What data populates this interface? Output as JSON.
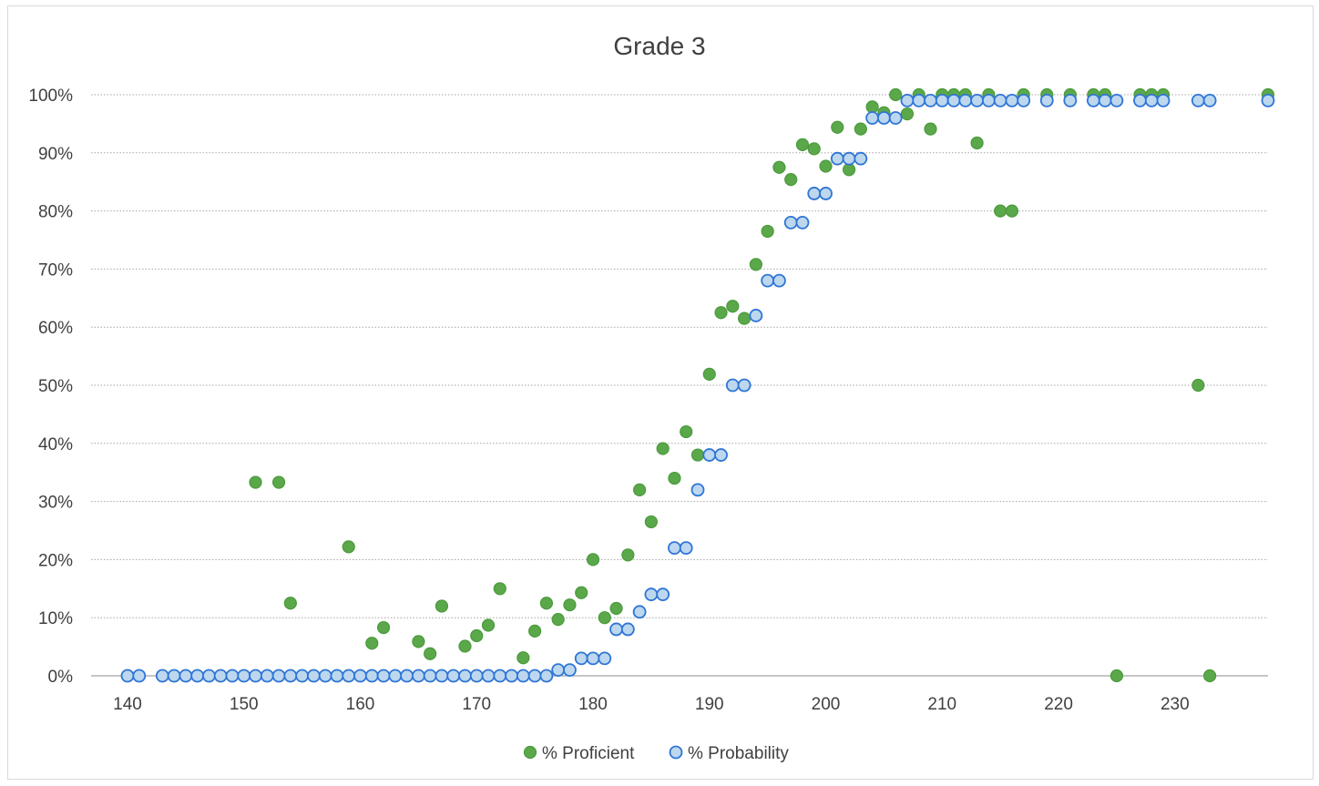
{
  "chart_data": {
    "type": "scatter",
    "title": "Grade 3",
    "xlabel": "",
    "ylabel": "",
    "xlim": [
      140,
      238
    ],
    "ylim": [
      0,
      100
    ],
    "x_ticks": [
      140,
      150,
      160,
      170,
      180,
      190,
      200,
      210,
      220,
      230
    ],
    "y_ticks": [
      0,
      10,
      20,
      30,
      40,
      50,
      60,
      70,
      80,
      90,
      100
    ],
    "y_tick_suffix": "%",
    "grid": "horizontal dotted",
    "legend_position": "bottom",
    "series": [
      {
        "name": "% Proficient",
        "color": "#5aa84a",
        "edge": "#4a9a3c",
        "marker": "filled-circle",
        "points": [
          [
            140,
            0
          ],
          [
            141,
            0
          ],
          [
            143,
            0
          ],
          [
            144,
            0
          ],
          [
            145,
            0
          ],
          [
            146,
            0
          ],
          [
            147,
            0
          ],
          [
            148,
            0
          ],
          [
            149,
            0
          ],
          [
            150,
            0
          ],
          [
            151,
            33.3
          ],
          [
            152,
            0
          ],
          [
            153,
            33.3
          ],
          [
            154,
            12.5
          ],
          [
            155,
            0
          ],
          [
            156,
            0
          ],
          [
            157,
            0
          ],
          [
            158,
            0
          ],
          [
            159,
            22.2
          ],
          [
            160,
            0
          ],
          [
            161,
            5.6
          ],
          [
            162,
            8.3
          ],
          [
            163,
            0
          ],
          [
            164,
            0
          ],
          [
            165,
            5.9
          ],
          [
            166,
            3.8
          ],
          [
            167,
            12.0
          ],
          [
            168,
            0
          ],
          [
            169,
            5.1
          ],
          [
            170,
            6.9
          ],
          [
            171,
            8.7
          ],
          [
            172,
            15.0
          ],
          [
            173,
            0
          ],
          [
            174,
            3.1
          ],
          [
            175,
            7.7
          ],
          [
            176,
            12.5
          ],
          [
            177,
            9.7
          ],
          [
            178,
            12.2
          ],
          [
            179,
            14.3
          ],
          [
            180,
            20.0
          ],
          [
            181,
            10.0
          ],
          [
            182,
            11.6
          ],
          [
            183,
            20.8
          ],
          [
            184,
            32.0
          ],
          [
            185,
            26.5
          ],
          [
            186,
            39.1
          ],
          [
            187,
            34.0
          ],
          [
            188,
            42.0
          ],
          [
            189,
            38.0
          ],
          [
            190,
            51.9
          ],
          [
            191,
            62.5
          ],
          [
            192,
            63.6
          ],
          [
            193,
            61.5
          ],
          [
            194,
            70.8
          ],
          [
            195,
            76.5
          ],
          [
            196,
            87.5
          ],
          [
            197,
            85.4
          ],
          [
            198,
            91.4
          ],
          [
            199,
            90.7
          ],
          [
            200,
            87.7
          ],
          [
            201,
            94.4
          ],
          [
            202,
            87.1
          ],
          [
            203,
            94.1
          ],
          [
            204,
            97.9
          ],
          [
            205,
            96.9
          ],
          [
            206,
            100
          ],
          [
            207,
            96.7
          ],
          [
            208,
            100
          ],
          [
            209,
            94.1
          ],
          [
            210,
            100
          ],
          [
            211,
            100
          ],
          [
            212,
            100
          ],
          [
            213,
            91.7
          ],
          [
            214,
            100
          ],
          [
            215,
            80.0
          ],
          [
            216,
            80.0
          ],
          [
            217,
            100
          ],
          [
            219,
            100
          ],
          [
            221,
            100
          ],
          [
            223,
            100
          ],
          [
            224,
            100
          ],
          [
            225,
            0
          ],
          [
            227,
            100
          ],
          [
            228,
            100
          ],
          [
            229,
            100
          ],
          [
            232,
            50.0
          ],
          [
            233,
            0
          ],
          [
            238,
            100
          ]
        ]
      },
      {
        "name": "% Probability",
        "color": "#bdd7ee",
        "edge": "#2e75d6",
        "marker": "open-circle",
        "points": [
          [
            140,
            0
          ],
          [
            141,
            0
          ],
          [
            143,
            0
          ],
          [
            144,
            0
          ],
          [
            145,
            0
          ],
          [
            146,
            0
          ],
          [
            147,
            0
          ],
          [
            148,
            0
          ],
          [
            149,
            0
          ],
          [
            150,
            0
          ],
          [
            151,
            0
          ],
          [
            152,
            0
          ],
          [
            153,
            0
          ],
          [
            154,
            0
          ],
          [
            155,
            0
          ],
          [
            156,
            0
          ],
          [
            157,
            0
          ],
          [
            158,
            0
          ],
          [
            159,
            0
          ],
          [
            160,
            0
          ],
          [
            161,
            0
          ],
          [
            162,
            0
          ],
          [
            163,
            0
          ],
          [
            164,
            0
          ],
          [
            165,
            0
          ],
          [
            166,
            0
          ],
          [
            167,
            0
          ],
          [
            168,
            0
          ],
          [
            169,
            0
          ],
          [
            170,
            0
          ],
          [
            171,
            0
          ],
          [
            172,
            0
          ],
          [
            173,
            0
          ],
          [
            174,
            0
          ],
          [
            175,
            0
          ],
          [
            176,
            0
          ],
          [
            177,
            1
          ],
          [
            178,
            1
          ],
          [
            179,
            3
          ],
          [
            180,
            3
          ],
          [
            181,
            3
          ],
          [
            182,
            8
          ],
          [
            183,
            8
          ],
          [
            184,
            11
          ],
          [
            185,
            14
          ],
          [
            186,
            14
          ],
          [
            187,
            22
          ],
          [
            188,
            22
          ],
          [
            189,
            32
          ],
          [
            190,
            38
          ],
          [
            191,
            38
          ],
          [
            192,
            50
          ],
          [
            193,
            50
          ],
          [
            194,
            62
          ],
          [
            195,
            68
          ],
          [
            196,
            68
          ],
          [
            197,
            78
          ],
          [
            198,
            78
          ],
          [
            199,
            83
          ],
          [
            200,
            83
          ],
          [
            201,
            89
          ],
          [
            202,
            89
          ],
          [
            203,
            89
          ],
          [
            204,
            96
          ],
          [
            205,
            96
          ],
          [
            206,
            96
          ],
          [
            207,
            99
          ],
          [
            208,
            99
          ],
          [
            209,
            99
          ],
          [
            210,
            99
          ],
          [
            211,
            99
          ],
          [
            212,
            99
          ],
          [
            213,
            99
          ],
          [
            214,
            99
          ],
          [
            215,
            99
          ],
          [
            216,
            99
          ],
          [
            217,
            99
          ],
          [
            219,
            99
          ],
          [
            221,
            99
          ],
          [
            223,
            99
          ],
          [
            224,
            99
          ],
          [
            225,
            99
          ],
          [
            227,
            99
          ],
          [
            228,
            99
          ],
          [
            229,
            99
          ],
          [
            232,
            99
          ],
          [
            233,
            99
          ],
          [
            238,
            99
          ]
        ]
      }
    ]
  }
}
